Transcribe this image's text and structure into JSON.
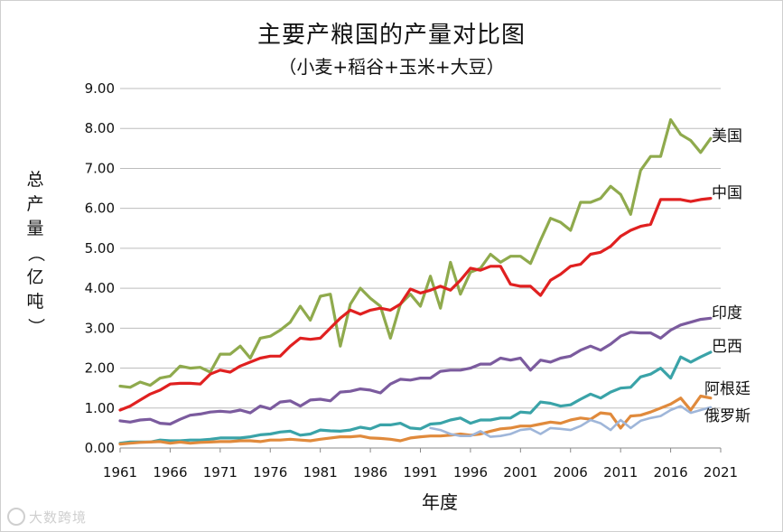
{
  "chart_data": {
    "type": "line",
    "title": "主要产粮国的产量对比图",
    "subtitle": "（小麦+稻谷+玉米+大豆）",
    "ylabel": "总产量（亿吨）",
    "xlabel": "年度",
    "ylim": [
      0,
      9
    ],
    "yticks": [
      "0.00",
      "1.00",
      "2.00",
      "3.00",
      "4.00",
      "5.00",
      "6.00",
      "7.00",
      "8.00",
      "9.00"
    ],
    "xticks": [
      1961,
      1966,
      1971,
      1976,
      1981,
      1986,
      1991,
      1996,
      2001,
      2006,
      2011,
      2016,
      2021
    ],
    "xlim": [
      1961,
      2021
    ],
    "grid": true,
    "legend": "inline-right",
    "x": [
      1961,
      1962,
      1963,
      1964,
      1965,
      1966,
      1967,
      1968,
      1969,
      1970,
      1971,
      1972,
      1973,
      1974,
      1975,
      1976,
      1977,
      1978,
      1979,
      1980,
      1981,
      1982,
      1983,
      1984,
      1985,
      1986,
      1987,
      1988,
      1989,
      1990,
      1991,
      1992,
      1993,
      1994,
      1995,
      1996,
      1997,
      1998,
      1999,
      2000,
      2001,
      2002,
      2003,
      2004,
      2005,
      2006,
      2007,
      2008,
      2009,
      2010,
      2011,
      2012,
      2013,
      2014,
      2015,
      2016,
      2017,
      2018,
      2019,
      2020
    ],
    "series": [
      {
        "name": "美国",
        "color": "#8faa4d",
        "values": [
          1.55,
          1.52,
          1.65,
          1.57,
          1.75,
          1.8,
          2.05,
          2.0,
          2.02,
          1.9,
          2.35,
          2.35,
          2.55,
          2.25,
          2.75,
          2.8,
          2.95,
          3.15,
          3.55,
          3.2,
          3.8,
          3.85,
          2.55,
          3.6,
          4.0,
          3.75,
          3.55,
          2.75,
          3.6,
          3.85,
          3.55,
          4.3,
          3.5,
          4.65,
          3.85,
          4.4,
          4.5,
          4.85,
          4.65,
          4.8,
          4.8,
          4.62,
          5.2,
          5.75,
          5.65,
          5.45,
          6.15,
          6.15,
          6.25,
          6.55,
          6.35,
          5.85,
          6.95,
          7.3,
          7.3,
          8.22,
          7.85,
          7.7,
          7.4,
          7.75
        ]
      },
      {
        "name": "中国",
        "color": "#e02020",
        "values": [
          0.95,
          1.05,
          1.2,
          1.35,
          1.45,
          1.6,
          1.62,
          1.62,
          1.6,
          1.85,
          1.95,
          1.9,
          2.05,
          2.15,
          2.25,
          2.3,
          2.3,
          2.55,
          2.75,
          2.72,
          2.75,
          3.0,
          3.25,
          3.45,
          3.35,
          3.45,
          3.5,
          3.45,
          3.6,
          3.98,
          3.88,
          3.95,
          4.05,
          3.95,
          4.2,
          4.5,
          4.45,
          4.55,
          4.55,
          4.1,
          4.05,
          4.05,
          3.82,
          4.2,
          4.35,
          4.55,
          4.6,
          4.85,
          4.9,
          5.05,
          5.3,
          5.45,
          5.55,
          5.6,
          6.22,
          6.22,
          6.22,
          6.17,
          6.22,
          6.25
        ]
      },
      {
        "name": "印度",
        "color": "#7b5b9e",
        "values": [
          0.68,
          0.65,
          0.7,
          0.72,
          0.62,
          0.6,
          0.72,
          0.82,
          0.85,
          0.9,
          0.92,
          0.9,
          0.95,
          0.88,
          1.05,
          0.98,
          1.15,
          1.18,
          1.05,
          1.2,
          1.22,
          1.18,
          1.4,
          1.42,
          1.48,
          1.45,
          1.38,
          1.6,
          1.72,
          1.7,
          1.75,
          1.75,
          1.92,
          1.95,
          1.95,
          2.0,
          2.1,
          2.1,
          2.25,
          2.2,
          2.25,
          1.95,
          2.2,
          2.15,
          2.25,
          2.3,
          2.45,
          2.55,
          2.45,
          2.6,
          2.8,
          2.9,
          2.88,
          2.88,
          2.75,
          2.95,
          3.08,
          3.15,
          3.22,
          3.25
        ]
      },
      {
        "name": "巴西",
        "color": "#3aa3a8",
        "values": [
          0.12,
          0.15,
          0.15,
          0.15,
          0.2,
          0.18,
          0.18,
          0.2,
          0.2,
          0.22,
          0.25,
          0.25,
          0.25,
          0.28,
          0.33,
          0.35,
          0.4,
          0.42,
          0.32,
          0.35,
          0.45,
          0.43,
          0.42,
          0.45,
          0.52,
          0.48,
          0.58,
          0.58,
          0.62,
          0.5,
          0.48,
          0.6,
          0.62,
          0.7,
          0.75,
          0.62,
          0.7,
          0.7,
          0.75,
          0.75,
          0.9,
          0.88,
          1.15,
          1.12,
          1.05,
          1.08,
          1.22,
          1.35,
          1.25,
          1.4,
          1.5,
          1.52,
          1.78,
          1.85,
          2.0,
          1.75,
          2.28,
          2.15,
          2.28,
          2.4
        ]
      },
      {
        "name": "阿根廷",
        "color": "#e08a3c",
        "values": [
          0.1,
          0.12,
          0.14,
          0.15,
          0.16,
          0.12,
          0.15,
          0.12,
          0.14,
          0.15,
          0.16,
          0.16,
          0.18,
          0.18,
          0.16,
          0.2,
          0.2,
          0.22,
          0.2,
          0.18,
          0.22,
          0.25,
          0.28,
          0.28,
          0.3,
          0.25,
          0.24,
          0.22,
          0.18,
          0.25,
          0.28,
          0.3,
          0.3,
          0.32,
          0.35,
          0.32,
          0.35,
          0.42,
          0.48,
          0.5,
          0.55,
          0.55,
          0.6,
          0.65,
          0.62,
          0.7,
          0.75,
          0.72,
          0.88,
          0.85,
          0.5,
          0.8,
          0.82,
          0.9,
          1.0,
          1.1,
          1.25,
          0.95,
          1.3,
          1.25
        ]
      },
      {
        "name": "俄罗斯",
        "color": "#9fb6d9",
        "values": [
          null,
          null,
          null,
          null,
          null,
          null,
          null,
          null,
          null,
          null,
          null,
          null,
          null,
          null,
          null,
          null,
          null,
          null,
          null,
          null,
          null,
          null,
          null,
          null,
          null,
          null,
          null,
          null,
          null,
          null,
          null,
          0.5,
          0.45,
          0.35,
          0.3,
          0.3,
          0.42,
          0.28,
          0.3,
          0.35,
          0.45,
          0.48,
          0.35,
          0.5,
          0.48,
          0.45,
          0.55,
          0.7,
          0.62,
          0.45,
          0.7,
          0.5,
          0.68,
          0.75,
          0.8,
          0.95,
          1.05,
          0.88,
          0.95,
          1.02
        ]
      }
    ]
  },
  "watermark": "大数跨境"
}
